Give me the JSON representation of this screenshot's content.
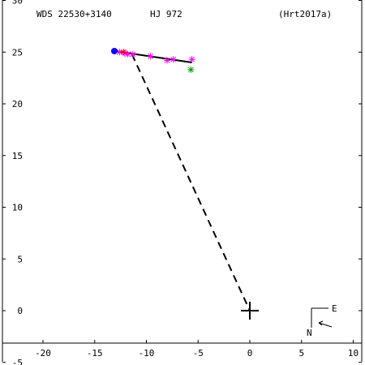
{
  "header": {
    "wds": "WDS 22530+3140",
    "disc": "HJ  972",
    "ref": "(Hrt2017a)"
  },
  "compass": {
    "east": "E",
    "north": "N"
  },
  "colors": {
    "axes": "#000000",
    "orbit": "#000000",
    "obs_pink": "#ff00ff",
    "obs_red": "#ff0000",
    "obs_green": "#00a000",
    "first_obs": "#0000ff"
  },
  "chart_data": {
    "type": "scatter",
    "xlim": [
      -22,
      11
    ],
    "ylim": [
      -5,
      30
    ],
    "x_ticks": [
      -20,
      -15,
      -10,
      -5,
      0,
      5,
      10
    ],
    "y_ticks": [
      -5,
      0,
      5,
      10,
      15,
      20,
      25,
      30
    ],
    "primary": [
      0,
      0
    ],
    "first_obs": [
      -13.1,
      25.1
    ],
    "fit_line": [
      [
        -13.1,
        25.1
      ],
      [
        -5.6,
        24.0
      ]
    ],
    "dashed_line": [
      [
        -11.4,
        24.8
      ],
      [
        0,
        0
      ]
    ],
    "observations": [
      {
        "x": -12.6,
        "y": 25.0,
        "color": "#ff00ff"
      },
      {
        "x": -12.1,
        "y": 24.9,
        "color": "#ff00ff"
      },
      {
        "x": -11.8,
        "y": 24.8,
        "color": "#ff00ff"
      },
      {
        "x": -11.3,
        "y": 24.8,
        "color": "#ff00ff"
      },
      {
        "x": -9.6,
        "y": 24.6,
        "color": "#ff00ff"
      },
      {
        "x": -8.0,
        "y": 24.2,
        "color": "#ff00ff"
      },
      {
        "x": -7.4,
        "y": 24.3,
        "color": "#ff00ff"
      },
      {
        "x": -5.6,
        "y": 24.3,
        "color": "#ff00ff"
      },
      {
        "x": -12.2,
        "y": 25.0,
        "color": "#ff0000"
      },
      {
        "x": -5.7,
        "y": 23.3,
        "color": "#00a000"
      }
    ]
  }
}
